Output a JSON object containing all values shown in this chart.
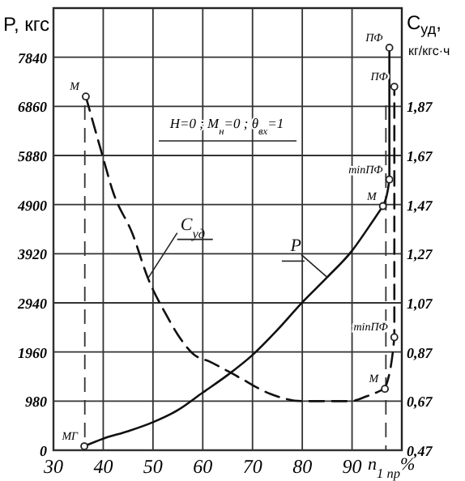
{
  "chart_data": {
    "type": "line",
    "ylabel": "P, кгс",
    "y2label": "C$_{уд}$, кг/кгс·ч",
    "xlabel": "n$_{1 пр}$%",
    "xlim": [
      30,
      100
    ],
    "xticks": [
      30,
      40,
      50,
      60,
      70,
      80,
      90
    ],
    "ylim": [
      0,
      8820
    ],
    "yticks": [
      0,
      980,
      1960,
      2940,
      3920,
      4900,
      5880,
      6860,
      7840
    ],
    "y2lim": [
      0.47,
      2.27
    ],
    "y2ticks": [
      {
        "value": 0.47,
        "label": "0,47"
      },
      {
        "value": 0.67,
        "label": "0,67"
      },
      {
        "value": 0.87,
        "label": "0,87"
      },
      {
        "value": 1.07,
        "label": "1,07"
      },
      {
        "value": 1.27,
        "label": "1,27"
      },
      {
        "value": 1.47,
        "label": "1,47"
      },
      {
        "value": 1.67,
        "label": "1,67"
      },
      {
        "value": 1.87,
        "label": "1,87"
      }
    ],
    "grid": true,
    "series": [
      {
        "name": "P",
        "color": "#111111",
        "x": [
          36.2,
          40,
          45,
          50,
          55,
          60,
          65,
          70,
          75,
          80,
          85,
          90,
          93,
          96.2
        ],
        "values": [
          80,
          230,
          380,
          560,
          800,
          1150,
          1500,
          1900,
          2400,
          2950,
          3450,
          3980,
          4400,
          4870
        ]
      },
      {
        "name": "C$_{уд}$",
        "color": "#111111",
        "axis": "y2",
        "line_style": "dashed",
        "x": [
          36.5,
          39.7,
          42,
          45.9,
          49,
          52.7,
          55,
          58.2,
          61.5,
          67,
          73.5,
          80,
          84.2,
          89.7,
          93,
          96.6
        ],
        "values": [
          1.91,
          1.68,
          1.52,
          1.35,
          1.17,
          1.02,
          0.94,
          0.86,
          0.83,
          0.77,
          0.7,
          0.67,
          0.67,
          0.67,
          0.69,
          0.72
        ]
      },
      {
        "color": "#111111",
        "x": [
          96.2,
          97.5,
          97.5
        ],
        "values": [
          4870,
          5400,
          8030
        ]
      },
      {
        "color": "#111111",
        "axis": "y2",
        "line_style": "dashed",
        "x": [
          96.6,
          98.5,
          98.5
        ],
        "values": [
          0.72,
          0.93,
          1.95
        ]
      }
    ],
    "ref_lines": [
      {
        "axis": "x",
        "value": 36.3,
        "line_style": "dashed"
      },
      {
        "axis": "x",
        "value": 96.8,
        "line_style": "dashed"
      }
    ],
    "annotations": [
      "H=0 ;  M$_{н}$=0 ;  θ$_{вх}$=1",
      {
        "text": "М",
        "x": 36.5,
        "y": 7056
      },
      {
        "text": "МГ",
        "x": 36.2,
        "y": 80
      },
      {
        "text": "М",
        "x": 96.2,
        "y": 4870
      },
      {
        "text": "М",
        "x": 96.6,
        "y": 1225
      },
      {
        "text": "ПФ",
        "x": 97.5,
        "y": 8030
      },
      {
        "text": "ПФ",
        "x": 98.5,
        "y": 7252
      },
      {
        "text": "minПФ",
        "x": 97.5,
        "y": 5400
      },
      {
        "text": "minПФ",
        "x": 98.5,
        "y": 2254
      }
    ]
  }
}
